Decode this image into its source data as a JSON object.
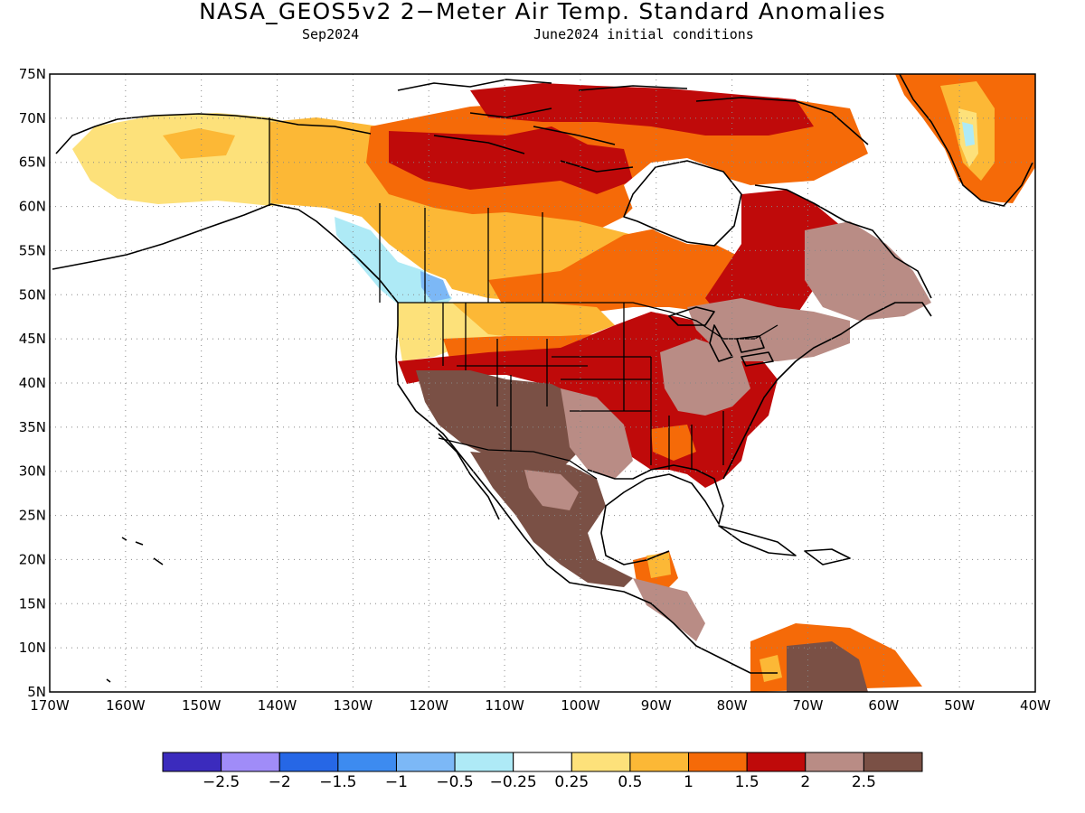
{
  "header": {
    "title": "NASA_GEOS5v2 2−Meter Air Temp. Standard Anomalies",
    "valid_month": "Sep2024",
    "init": "June2024 initial conditions"
  },
  "map": {
    "projection": "lat-lon (cylindrical equidistant)",
    "lon_range": [
      -170,
      -40
    ],
    "lat_range": [
      5,
      75
    ],
    "gridlines": "dotted",
    "lat_labels": [
      "5N",
      "10N",
      "15N",
      "20N",
      "25N",
      "30N",
      "35N",
      "40N",
      "45N",
      "50N",
      "55N",
      "60N",
      "65N",
      "70N",
      "75N"
    ],
    "lon_labels": [
      "170W",
      "160W",
      "150W",
      "140W",
      "130W",
      "120W",
      "110W",
      "100W",
      "90W",
      "80W",
      "70W",
      "60W",
      "50W",
      "40W"
    ],
    "regions": [
      {
        "name": "Mexico & US Southwest",
        "category": "> 2.5",
        "color": "#7a5045"
      },
      {
        "name": "Central & Southern Plains / Midwest",
        "category": "1.5 to 2",
        "color": "#bf0a0a"
      },
      {
        "name": "Southeast US",
        "category": "1.5 to 2",
        "color": "#bf0a0a"
      },
      {
        "name": "Ohio Valley / Appalachians",
        "category": "2 to 2.5",
        "color": "#b98c85"
      },
      {
        "name": "Great Lakes & Northeast",
        "category": "2 to 2.5",
        "color": "#b98c85"
      },
      {
        "name": "Quebec / Labrador",
        "category": "1.5 to 2",
        "color": "#bf0a0a"
      },
      {
        "name": "Ontario & Manitoba",
        "category": "1 to 1.5",
        "color": "#f56a08"
      },
      {
        "name": "Canadian Prairies",
        "category": "0.5 to 1",
        "color": "#fcb836"
      },
      {
        "name": "Nunavut & Arctic islands",
        "category": "1.5 to 2",
        "color": "#bf0a0a"
      },
      {
        "name": "Yukon / NW Territories",
        "category": "0.5 to 1",
        "color": "#fcb836"
      },
      {
        "name": "Alaska",
        "category": "0.25 to 0.5",
        "color": "#fde17a"
      },
      {
        "name": "British Columbia coast",
        "category": "-0.5 to -0.25",
        "color": "#aeeaf6"
      },
      {
        "name": "Greenland",
        "category": "1 to 1.5",
        "color": "#f56a08"
      },
      {
        "name": "Northern South America",
        "category": "> 2.5",
        "color": "#7a5045"
      }
    ]
  },
  "colorbar": {
    "bins": [
      {
        "color": "#3b2bbd"
      },
      {
        "color": "#a08cf8"
      },
      {
        "color": "#2667e6"
      },
      {
        "color": "#3d8bf0"
      },
      {
        "color": "#7cb8f6"
      },
      {
        "color": "#aeeaf6"
      },
      {
        "color": "#ffffff"
      },
      {
        "color": "#fde17a"
      },
      {
        "color": "#fcb836"
      },
      {
        "color": "#f56a08"
      },
      {
        "color": "#bf0a0a"
      },
      {
        "color": "#b98c85"
      },
      {
        "color": "#7a5045"
      }
    ],
    "labels": [
      "−2.5",
      "−2",
      "−1.5",
      "−1",
      "−0.5",
      "−0.25",
      "0.25",
      "0.5",
      "1",
      "1.5",
      "2",
      "2.5"
    ]
  }
}
